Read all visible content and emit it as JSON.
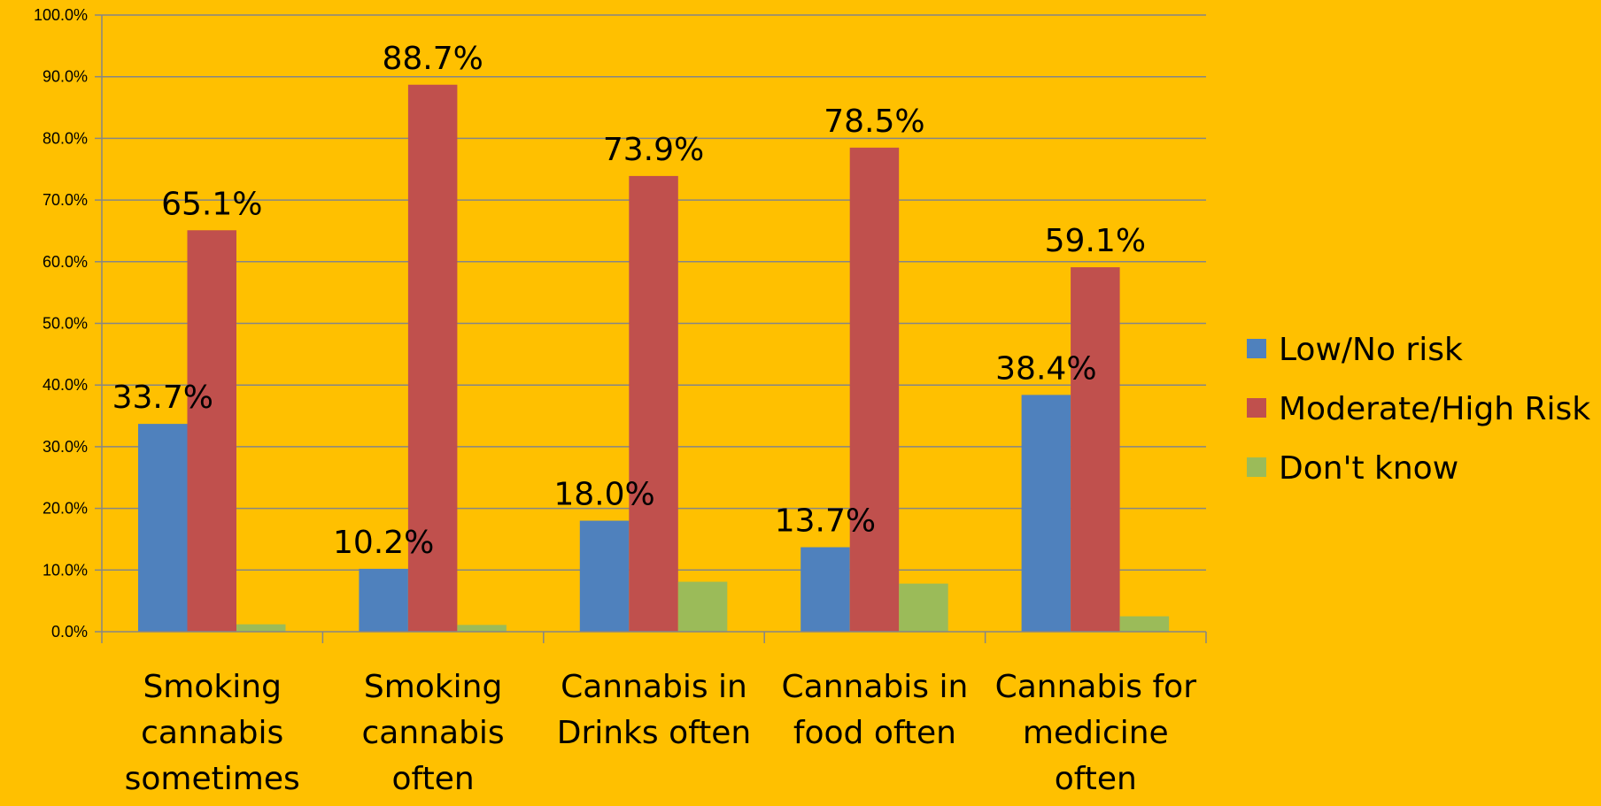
{
  "chart_data": {
    "type": "bar",
    "categories": [
      [
        "Smoking",
        "cannabis",
        "sometimes"
      ],
      [
        "Smoking",
        "cannabis",
        "often"
      ],
      [
        "Cannabis in",
        "Drinks often"
      ],
      [
        "Cannabis in",
        "food often"
      ],
      [
        "Cannabis for",
        "medicine",
        "often"
      ]
    ],
    "series": [
      {
        "name": "Low/No risk",
        "color": "#4F81BD",
        "values": [
          33.7,
          10.2,
          18.0,
          13.7,
          38.4
        ],
        "labels": [
          "33.7%",
          "10.2%",
          "18.0%",
          "13.7%",
          "38.4%"
        ]
      },
      {
        "name": "Moderate/High Risk",
        "color": "#C0504D",
        "values": [
          65.1,
          88.7,
          73.9,
          78.5,
          59.1
        ],
        "labels": [
          "65.1%",
          "88.7%",
          "73.9%",
          "78.5%",
          "59.1%"
        ]
      },
      {
        "name": "Don't know",
        "color": "#9BBB59",
        "values": [
          1.2,
          1.1,
          8.1,
          7.8,
          2.5
        ],
        "labels": []
      }
    ],
    "ylim": [
      0,
      100
    ],
    "yticks": [
      "0.0%",
      "10.0%",
      "20.0%",
      "30.0%",
      "40.0%",
      "50.0%",
      "60.0%",
      "70.0%",
      "80.0%",
      "90.0%",
      "100.0%"
    ],
    "grid": true,
    "legend_position": "right",
    "background": "#FFC000"
  }
}
